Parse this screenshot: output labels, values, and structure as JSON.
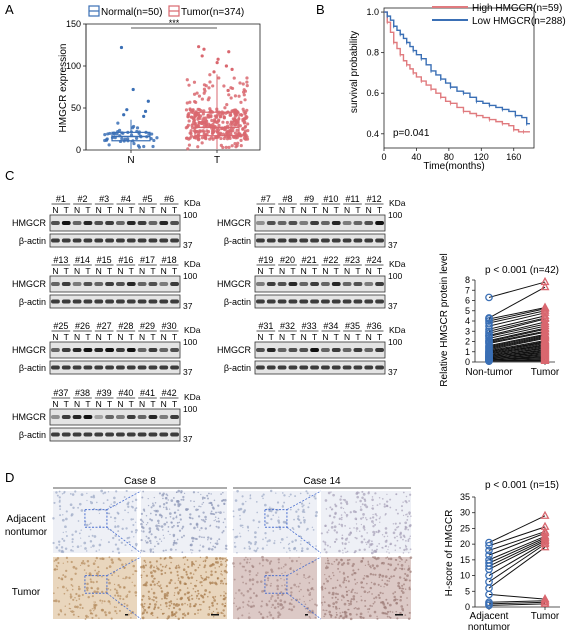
{
  "panel_letters": [
    "A",
    "B",
    "C",
    "D"
  ],
  "chart_data": [
    {
      "type": "box",
      "panel": "A",
      "ylabel": "HMGCR expression",
      "categories": [
        "N",
        "T"
      ],
      "legend": [
        "Normal(n=50)",
        "Tumor(n=374)"
      ],
      "yticks": [
        "0",
        "50",
        "100",
        "150"
      ],
      "ylim": [
        0,
        150
      ],
      "significance": "***",
      "colors": [
        "#3a6fb5",
        "#d9676f"
      ],
      "series": [
        {
          "name": "Normal(n=50)",
          "min": 1,
          "q1": 11,
          "median": 16,
          "q3": 21,
          "max": 36,
          "outliers": [
            40,
            42,
            46,
            48,
            58,
            72,
            122
          ]
        },
        {
          "name": "Tumor(n=374)",
          "min": 1,
          "q1": 17,
          "median": 27,
          "q3": 45,
          "max": 90,
          "outliers": [
            93,
            96,
            100,
            104,
            108,
            112,
            117,
            120,
            123
          ]
        }
      ]
    },
    {
      "type": "line",
      "panel": "B",
      "ylabel": "survival probability",
      "xlabel": "Time(months)",
      "xticks": [
        "0",
        "40",
        "80",
        "120",
        "160"
      ],
      "yticks": [
        "0.4",
        "0.6",
        "0.8",
        "1.0"
      ],
      "xlim": [
        0,
        185
      ],
      "ylim": [
        0.33,
        1.02
      ],
      "annotation": "p=0.041",
      "legend_position": "top-right",
      "series": [
        {
          "name": "High HMGCR(n=59)",
          "color": "#e07a7e",
          "x": [
            0,
            4,
            8,
            12,
            16,
            20,
            24,
            28,
            32,
            36,
            40,
            46,
            52,
            58,
            64,
            70,
            76,
            82,
            90,
            98,
            106,
            114,
            122,
            130,
            138,
            146,
            154,
            160,
            166,
            172,
            180
          ],
          "y": [
            1.0,
            0.95,
            0.9,
            0.85,
            0.82,
            0.79,
            0.76,
            0.74,
            0.72,
            0.7,
            0.68,
            0.66,
            0.64,
            0.62,
            0.6,
            0.58,
            0.56,
            0.55,
            0.53,
            0.51,
            0.5,
            0.49,
            0.48,
            0.47,
            0.46,
            0.45,
            0.44,
            0.42,
            0.41,
            0.41,
            0.41
          ]
        },
        {
          "name": "Low HMGCR(n=288)",
          "color": "#3a6fb5",
          "x": [
            0,
            4,
            8,
            12,
            16,
            20,
            24,
            28,
            32,
            36,
            40,
            46,
            52,
            58,
            64,
            70,
            76,
            82,
            90,
            98,
            106,
            114,
            122,
            130,
            138,
            146,
            154,
            162,
            170,
            176,
            180
          ],
          "y": [
            1.0,
            0.98,
            0.96,
            0.93,
            0.91,
            0.89,
            0.87,
            0.85,
            0.83,
            0.81,
            0.79,
            0.77,
            0.74,
            0.71,
            0.69,
            0.67,
            0.65,
            0.63,
            0.61,
            0.6,
            0.58,
            0.56,
            0.55,
            0.54,
            0.53,
            0.52,
            0.51,
            0.49,
            0.48,
            0.45,
            0.45
          ]
        }
      ]
    },
    {
      "type": "scatter",
      "panel": "C",
      "title": "p < 0.001 (n=42)",
      "ylabel": "Relative HMGCR protein level",
      "categories": [
        "Non-tumor",
        "Tumor"
      ],
      "yticks": [
        "0",
        "1",
        "2",
        "3",
        "4",
        "5",
        "6",
        "7",
        "8"
      ],
      "ylim": [
        0,
        8
      ],
      "colors": [
        "#3a6fb5",
        "#d9676f"
      ],
      "series": [
        {
          "name": "Non-tumor",
          "values": [
            6.3,
            4.3,
            4.2,
            4.0,
            3.8,
            3.5,
            3.2,
            3.0,
            2.8,
            2.6,
            2.5,
            2.3,
            2.1,
            2.0,
            1.9,
            1.8,
            1.6,
            1.5,
            1.4,
            1.3,
            1.2,
            1.1,
            1.0,
            1.0,
            0.9,
            0.8,
            0.8,
            0.7,
            0.6,
            0.6,
            0.5,
            0.5,
            0.4,
            0.4,
            0.3,
            0.3,
            0.2,
            0.2,
            0.2,
            0.1,
            0.1,
            0.1
          ]
        },
        {
          "name": "Tumor",
          "values": [
            7.8,
            7.3,
            5.3,
            5.2,
            5.0,
            4.8,
            4.5,
            4.3,
            4.2,
            3.9,
            3.7,
            3.5,
            3.3,
            3.2,
            3.0,
            2.9,
            2.7,
            2.6,
            2.5,
            2.4,
            2.3,
            2.1,
            2.0,
            1.9,
            1.8,
            1.7,
            1.6,
            1.5,
            1.4,
            1.3,
            1.2,
            1.1,
            1.0,
            0.9,
            0.8,
            0.7,
            0.6,
            0.5,
            0.4,
            0.3,
            0.2,
            0.1
          ]
        }
      ]
    },
    {
      "type": "scatter",
      "panel": "D",
      "title": "p < 0.001 (n=15)",
      "ylabel": "H-score of HMGCR",
      "categories": [
        "Adjacent\nnontumor",
        "Tumor"
      ],
      "yticks": [
        "0",
        "5",
        "10",
        "15",
        "20",
        "25",
        "30",
        "35"
      ],
      "ylim": [
        0,
        35
      ],
      "colors": [
        "#3a6fb5",
        "#d9676f"
      ],
      "series": [
        {
          "name": "Adjacent nontumor",
          "values": [
            20.5,
            19.5,
            18.0,
            16.5,
            15.0,
            14.0,
            13.0,
            12.0,
            10.0,
            8.0,
            6.0,
            4.0,
            1.5,
            1.0,
            0.5
          ]
        },
        {
          "name": "Tumor",
          "values": [
            29.0,
            25.5,
            24.0,
            23.5,
            22.5,
            22.0,
            21.5,
            21.0,
            20.5,
            20.0,
            19.0,
            2.5,
            2.0,
            1.5,
            1.0
          ]
        }
      ]
    }
  ],
  "western": {
    "kda_label": "KDa",
    "row1_label": "HMGCR",
    "row2_label": "β-actin",
    "lane_labels": [
      "N",
      "T",
      "N",
      "T",
      "N",
      "T",
      "N",
      "T",
      "N",
      "T",
      "N",
      "T"
    ],
    "marker_top": "100",
    "marker_bottom": "37",
    "blocks": [
      {
        "cases": [
          "#1",
          "#2",
          "#3",
          "#4",
          "#5",
          "#6"
        ],
        "hmgcr": [
          0.7,
          1.0,
          0.6,
          0.9,
          0.7,
          0.8,
          0.6,
          0.9,
          0.8,
          0.6,
          0.9,
          0.7
        ],
        "actin": [
          0.8,
          0.8,
          0.8,
          0.8,
          0.8,
          0.8,
          0.8,
          0.8,
          0.8,
          0.8,
          0.8,
          0.8
        ]
      },
      {
        "cases": [
          "#7",
          "#8",
          "#9",
          "#10",
          "#11",
          "#12"
        ],
        "hmgcr": [
          0.4,
          0.7,
          0.6,
          0.7,
          0.5,
          0.8,
          0.6,
          0.9,
          0.5,
          0.6,
          0.7,
          1.0
        ],
        "actin": [
          0.8,
          0.8,
          0.8,
          0.8,
          0.8,
          0.8,
          0.8,
          0.8,
          0.8,
          0.8,
          0.8,
          0.8
        ]
      },
      {
        "cases": [
          "#13",
          "#14",
          "#15",
          "#16",
          "#17",
          "#18"
        ],
        "hmgcr": [
          0.6,
          0.8,
          0.5,
          0.7,
          0.6,
          0.8,
          0.7,
          0.9,
          0.6,
          0.7,
          0.5,
          0.8
        ],
        "actin": [
          0.8,
          0.8,
          0.8,
          0.8,
          0.8,
          0.8,
          0.8,
          0.8,
          0.8,
          0.8,
          0.8,
          0.8
        ]
      },
      {
        "cases": [
          "#19",
          "#20",
          "#21",
          "#22",
          "#23",
          "#24"
        ],
        "hmgcr": [
          0.5,
          0.8,
          0.7,
          0.9,
          0.6,
          0.8,
          0.6,
          0.9,
          0.6,
          0.7,
          0.5,
          0.8
        ],
        "actin": [
          0.8,
          0.8,
          0.8,
          0.8,
          0.8,
          0.8,
          0.8,
          0.8,
          0.8,
          0.8,
          0.8,
          0.8
        ]
      },
      {
        "cases": [
          "#25",
          "#26",
          "#27",
          "#28",
          "#29",
          "#30"
        ],
        "hmgcr": [
          0.6,
          0.8,
          0.9,
          1.0,
          0.9,
          1.0,
          0.8,
          1.0,
          0.6,
          0.8,
          0.6,
          0.7
        ],
        "actin": [
          0.8,
          0.8,
          0.8,
          0.8,
          0.8,
          0.8,
          0.8,
          0.8,
          0.8,
          0.8,
          0.8,
          0.8
        ]
      },
      {
        "cases": [
          "#31",
          "#32",
          "#33",
          "#34",
          "#35",
          "#36"
        ],
        "hmgcr": [
          0.7,
          0.9,
          0.6,
          0.7,
          0.7,
          1.0,
          0.6,
          0.8,
          0.6,
          0.8,
          0.6,
          0.8
        ],
        "actin": [
          0.8,
          0.8,
          0.8,
          0.8,
          0.8,
          0.8,
          0.8,
          0.8,
          0.8,
          0.8,
          0.8,
          0.8
        ]
      },
      {
        "cases": [
          "#37",
          "#38",
          "#39",
          "#40",
          "#41",
          "#42"
        ],
        "hmgcr": [
          0.4,
          0.8,
          0.9,
          1.0,
          0.3,
          0.6,
          0.5,
          0.8,
          0.6,
          0.9,
          0.5,
          0.8
        ],
        "actin": [
          0.8,
          0.8,
          0.8,
          0.8,
          0.8,
          0.8,
          0.8,
          0.8,
          0.8,
          0.8,
          0.8,
          0.8
        ]
      }
    ]
  },
  "ihc": {
    "case_labels": [
      "Case 8",
      "Case 14"
    ],
    "row_labels": [
      "Adjacent\nnontumor",
      "Tumor"
    ]
  }
}
